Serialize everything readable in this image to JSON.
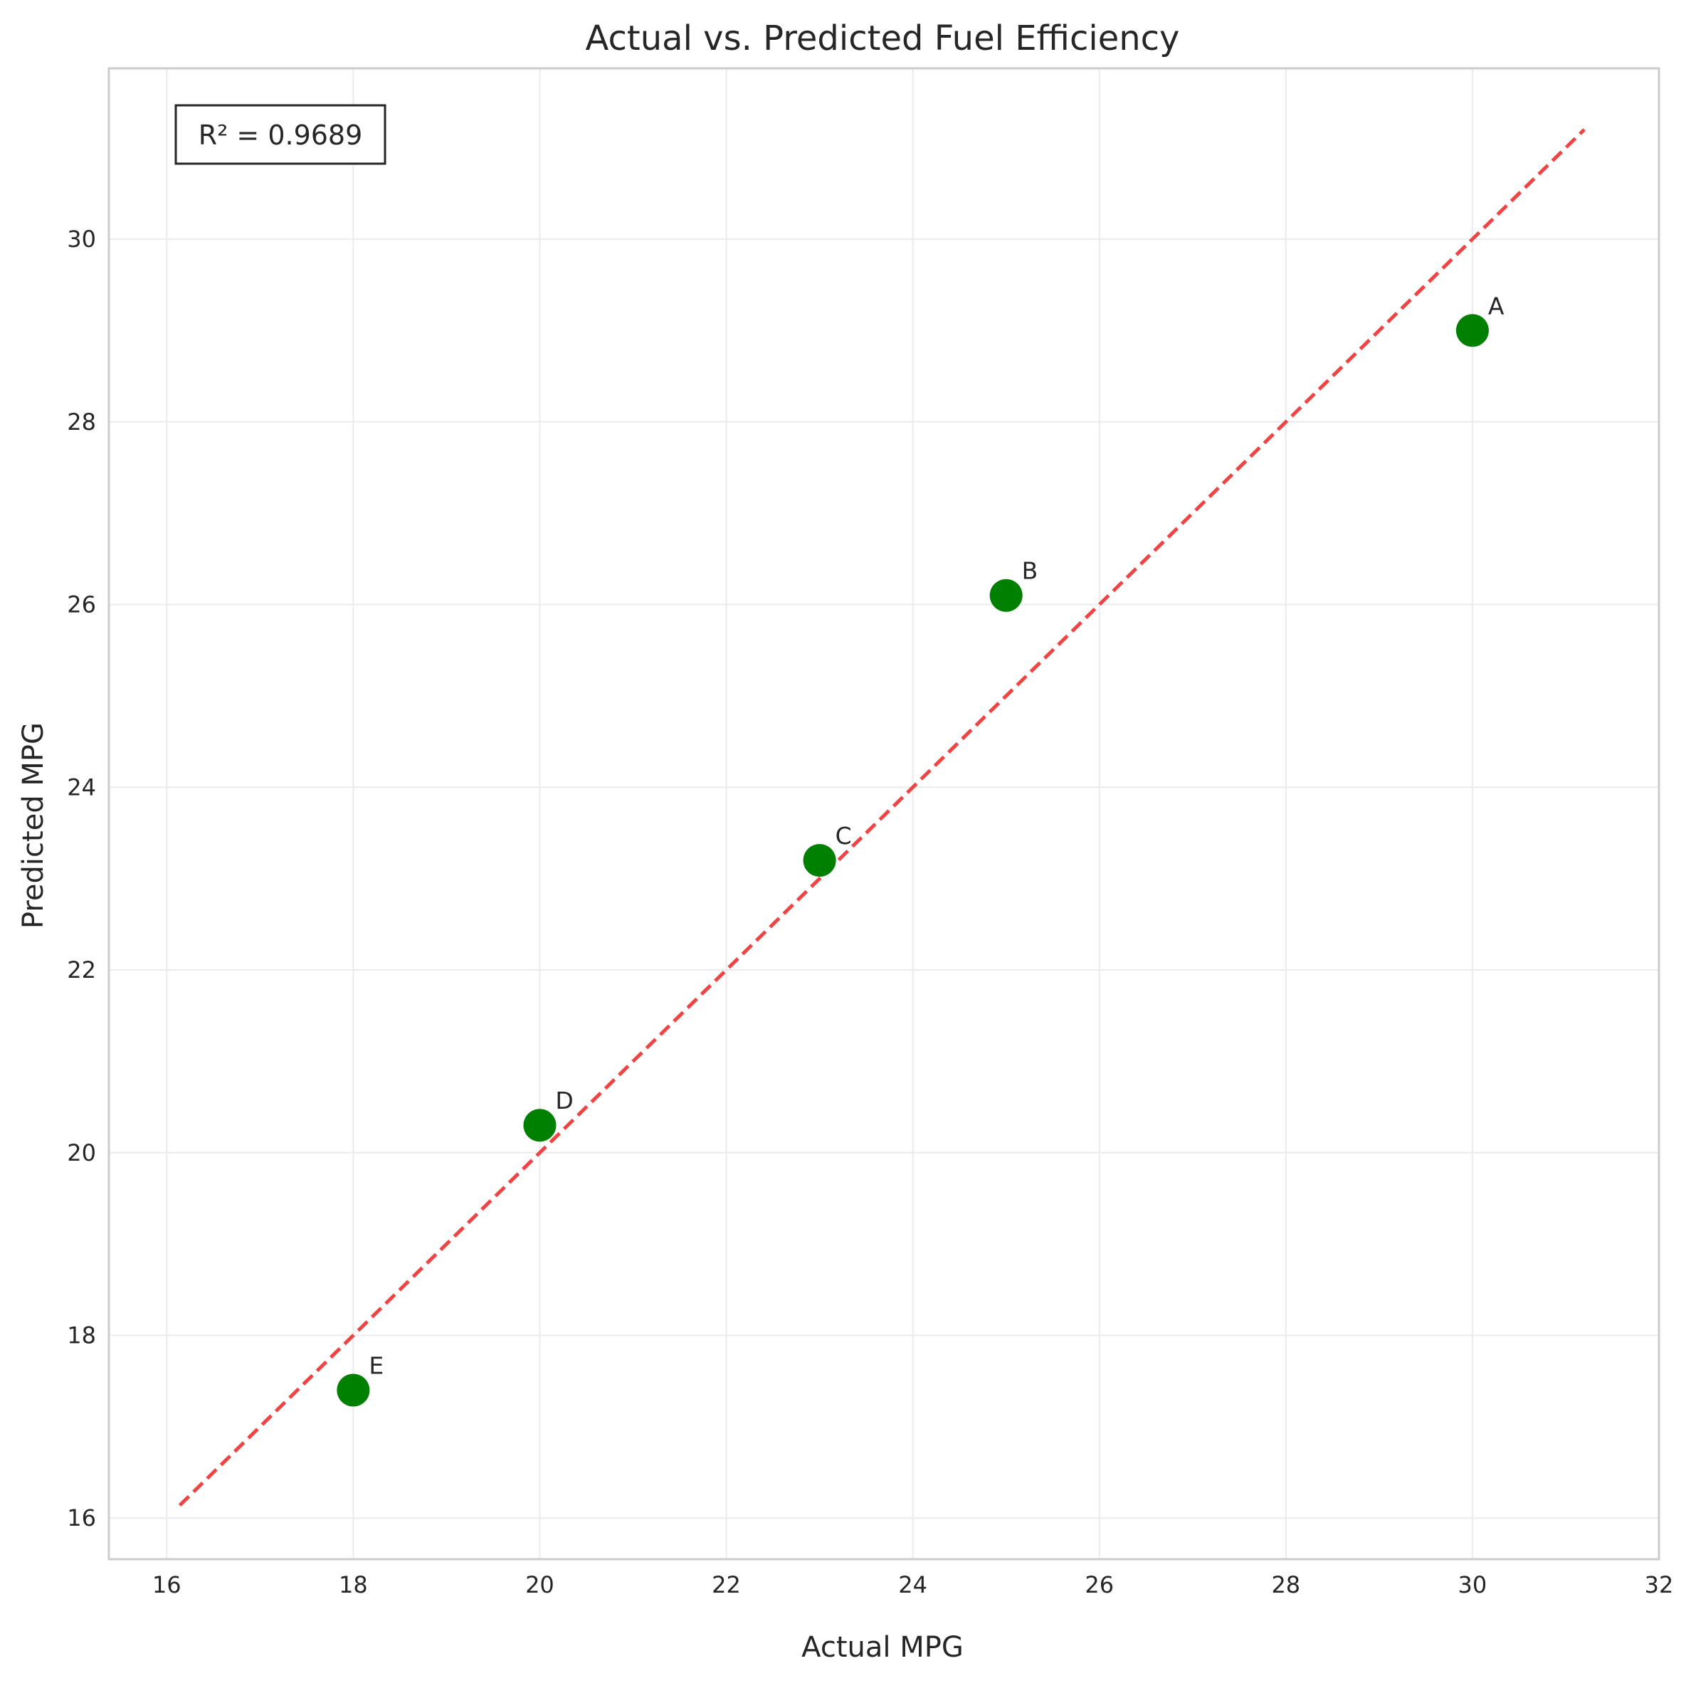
{
  "chart_data": {
    "type": "scatter",
    "title": "Actual vs. Predicted Fuel Efficiency",
    "xlabel": "Actual MPG",
    "ylabel": "Predicted MPG",
    "xlim": [
      15.38,
      32.0
    ],
    "ylim": [
      15.55,
      31.87
    ],
    "xticks": [
      16,
      18,
      20,
      22,
      24,
      26,
      28,
      30,
      32
    ],
    "yticks": [
      16,
      18,
      20,
      22,
      24,
      26,
      28,
      30
    ],
    "grid": true,
    "points": [
      {
        "label": "A",
        "x": 30,
        "y": 29.0
      },
      {
        "label": "B",
        "x": 25,
        "y": 26.1
      },
      {
        "label": "C",
        "x": 23,
        "y": 23.2
      },
      {
        "label": "D",
        "x": 20,
        "y": 20.3
      },
      {
        "label": "E",
        "x": 18,
        "y": 17.4
      }
    ],
    "reference_line": {
      "style": "dashed",
      "from": [
        16.14,
        16.14
      ],
      "to": [
        31.2,
        31.2
      ],
      "color": "#ef4444"
    },
    "annotation": "R² = 0.9689",
    "colors": {
      "points": "#008000",
      "reference_line": "#ef4444",
      "grid": "#ebebeb",
      "spine": "#cccccc",
      "text": "#262626"
    }
  }
}
